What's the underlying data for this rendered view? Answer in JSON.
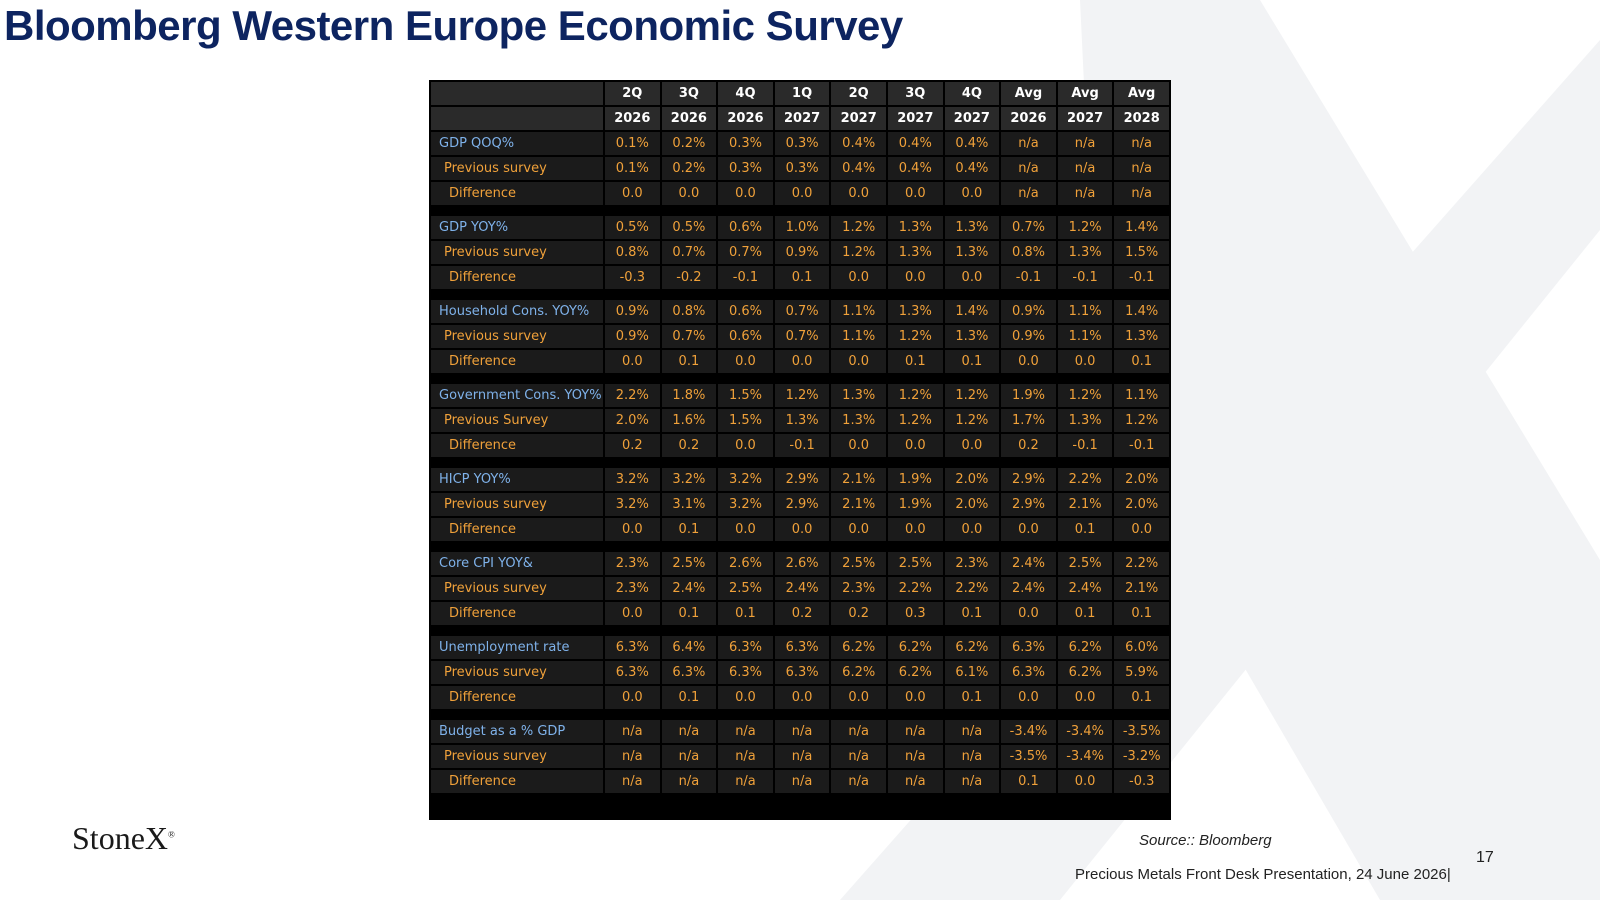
{
  "header": {
    "title": "Bloomberg Western Europe Economic Survey"
  },
  "table": {
    "columns": [
      {
        "period": "2Q",
        "year": "2026"
      },
      {
        "period": "3Q",
        "year": "2026"
      },
      {
        "period": "4Q",
        "year": "2026"
      },
      {
        "period": "1Q",
        "year": "2027"
      },
      {
        "period": "2Q",
        "year": "2027"
      },
      {
        "period": "3Q",
        "year": "2027"
      },
      {
        "period": "4Q",
        "year": "2027"
      },
      {
        "period": "Avg",
        "year": "2026"
      },
      {
        "period": "Avg",
        "year": "2027"
      },
      {
        "period": "Avg",
        "year": "2028"
      }
    ],
    "groups": [
      {
        "rows": [
          {
            "label": "GDP QOQ%",
            "values": [
              "0.1%",
              "0.2%",
              "0.3%",
              "0.3%",
              "0.4%",
              "0.4%",
              "0.4%",
              "n/a",
              "n/a",
              "n/a"
            ]
          },
          {
            "label": "Previous survey",
            "values": [
              "0.1%",
              "0.2%",
              "0.3%",
              "0.3%",
              "0.4%",
              "0.4%",
              "0.4%",
              "n/a",
              "n/a",
              "n/a"
            ]
          },
          {
            "label": "Difference",
            "values": [
              "0.0",
              "0.0",
              "0.0",
              "0.0",
              "0.0",
              "0.0",
              "0.0",
              "n/a",
              "n/a",
              "n/a"
            ]
          }
        ]
      },
      {
        "rows": [
          {
            "label": "GDP YOY%",
            "values": [
              "0.5%",
              "0.5%",
              "0.6%",
              "1.0%",
              "1.2%",
              "1.3%",
              "1.3%",
              "0.7%",
              "1.2%",
              "1.4%"
            ]
          },
          {
            "label": "Previous survey",
            "values": [
              "0.8%",
              "0.7%",
              "0.7%",
              "0.9%",
              "1.2%",
              "1.3%",
              "1.3%",
              "0.8%",
              "1.3%",
              "1.5%"
            ]
          },
          {
            "label": "Difference",
            "values": [
              "-0.3",
              "-0.2",
              "-0.1",
              "0.1",
              "0.0",
              "0.0",
              "0.0",
              "-0.1",
              "-0.1",
              "-0.1"
            ]
          }
        ]
      },
      {
        "rows": [
          {
            "label": "Household Cons. YOY%",
            "values": [
              "0.9%",
              "0.8%",
              "0.6%",
              "0.7%",
              "1.1%",
              "1.3%",
              "1.4%",
              "0.9%",
              "1.1%",
              "1.4%"
            ]
          },
          {
            "label": "Previous survey",
            "values": [
              "0.9%",
              "0.7%",
              "0.6%",
              "0.7%",
              "1.1%",
              "1.2%",
              "1.3%",
              "0.9%",
              "1.1%",
              "1.3%"
            ]
          },
          {
            "label": "Difference",
            "values": [
              "0.0",
              "0.1",
              "0.0",
              "0.0",
              "0.0",
              "0.1",
              "0.1",
              "0.0",
              "0.0",
              "0.1"
            ]
          }
        ]
      },
      {
        "rows": [
          {
            "label": "Government Cons. YOY%",
            "values": [
              "2.2%",
              "1.8%",
              "1.5%",
              "1.2%",
              "1.3%",
              "1.2%",
              "1.2%",
              "1.9%",
              "1.2%",
              "1.1%"
            ]
          },
          {
            "label": "Previous Survey",
            "values": [
              "2.0%",
              "1.6%",
              "1.5%",
              "1.3%",
              "1.3%",
              "1.2%",
              "1.2%",
              "1.7%",
              "1.3%",
              "1.2%"
            ]
          },
          {
            "label": "Difference",
            "values": [
              "0.2",
              "0.2",
              "0.0",
              "-0.1",
              "0.0",
              "0.0",
              "0.0",
              "0.2",
              "-0.1",
              "-0.1"
            ]
          }
        ]
      },
      {
        "rows": [
          {
            "label": "HICP YOY%",
            "values": [
              "3.2%",
              "3.2%",
              "3.2%",
              "2.9%",
              "2.1%",
              "1.9%",
              "2.0%",
              "2.9%",
              "2.2%",
              "2.0%"
            ]
          },
          {
            "label": "Previous survey",
            "values": [
              "3.2%",
              "3.1%",
              "3.2%",
              "2.9%",
              "2.1%",
              "1.9%",
              "2.0%",
              "2.9%",
              "2.1%",
              "2.0%"
            ]
          },
          {
            "label": "Difference",
            "values": [
              "0.0",
              "0.1",
              "0.0",
              "0.0",
              "0.0",
              "0.0",
              "0.0",
              "0.0",
              "0.1",
              "0.0"
            ]
          }
        ]
      },
      {
        "rows": [
          {
            "label": "Core CPI YOY&",
            "values": [
              "2.3%",
              "2.5%",
              "2.6%",
              "2.6%",
              "2.5%",
              "2.5%",
              "2.3%",
              "2.4%",
              "2.5%",
              "2.2%"
            ]
          },
          {
            "label": "Previous survey",
            "values": [
              "2.3%",
              "2.4%",
              "2.5%",
              "2.4%",
              "2.3%",
              "2.2%",
              "2.2%",
              "2.4%",
              "2.4%",
              "2.1%"
            ]
          },
          {
            "label": "Difference",
            "values": [
              "0.0",
              "0.1",
              "0.1",
              "0.2",
              "0.2",
              "0.3",
              "0.1",
              "0.0",
              "0.1",
              "0.1"
            ]
          }
        ]
      },
      {
        "rows": [
          {
            "label": "Unemployment rate",
            "values": [
              "6.3%",
              "6.4%",
              "6.3%",
              "6.3%",
              "6.2%",
              "6.2%",
              "6.2%",
              "6.3%",
              "6.2%",
              "6.0%"
            ]
          },
          {
            "label": "Previous survey",
            "values": [
              "6.3%",
              "6.3%",
              "6.3%",
              "6.3%",
              "6.2%",
              "6.2%",
              "6.1%",
              "6.3%",
              "6.2%",
              "5.9%"
            ]
          },
          {
            "label": "Difference",
            "values": [
              "0.0",
              "0.1",
              "0.0",
              "0.0",
              "0.0",
              "0.0",
              "0.1",
              "0.0",
              "0.0",
              "0.1"
            ]
          }
        ]
      },
      {
        "rows": [
          {
            "label": "Budget as a % GDP",
            "values": [
              "n/a",
              "n/a",
              "n/a",
              "n/a",
              "n/a",
              "n/a",
              "n/a",
              "-3.4%",
              "-3.4%",
              "-3.5%"
            ]
          },
          {
            "label": "Previous survey",
            "values": [
              "n/a",
              "n/a",
              "n/a",
              "n/a",
              "n/a",
              "n/a",
              "n/a",
              "-3.5%",
              "-3.4%",
              "-3.2%"
            ]
          },
          {
            "label": "Difference",
            "values": [
              "n/a",
              "n/a",
              "n/a",
              "n/a",
              "n/a",
              "n/a",
              "n/a",
              "0.1",
              "0.0",
              "-0.3"
            ]
          }
        ]
      }
    ]
  },
  "footer": {
    "logo": "StoneX",
    "logo_mark": "®",
    "source": "Source:: Bloomberg",
    "page_number": "17",
    "presentation": "Precious Metals Front Desk Presentation, 24 June 2026|"
  }
}
